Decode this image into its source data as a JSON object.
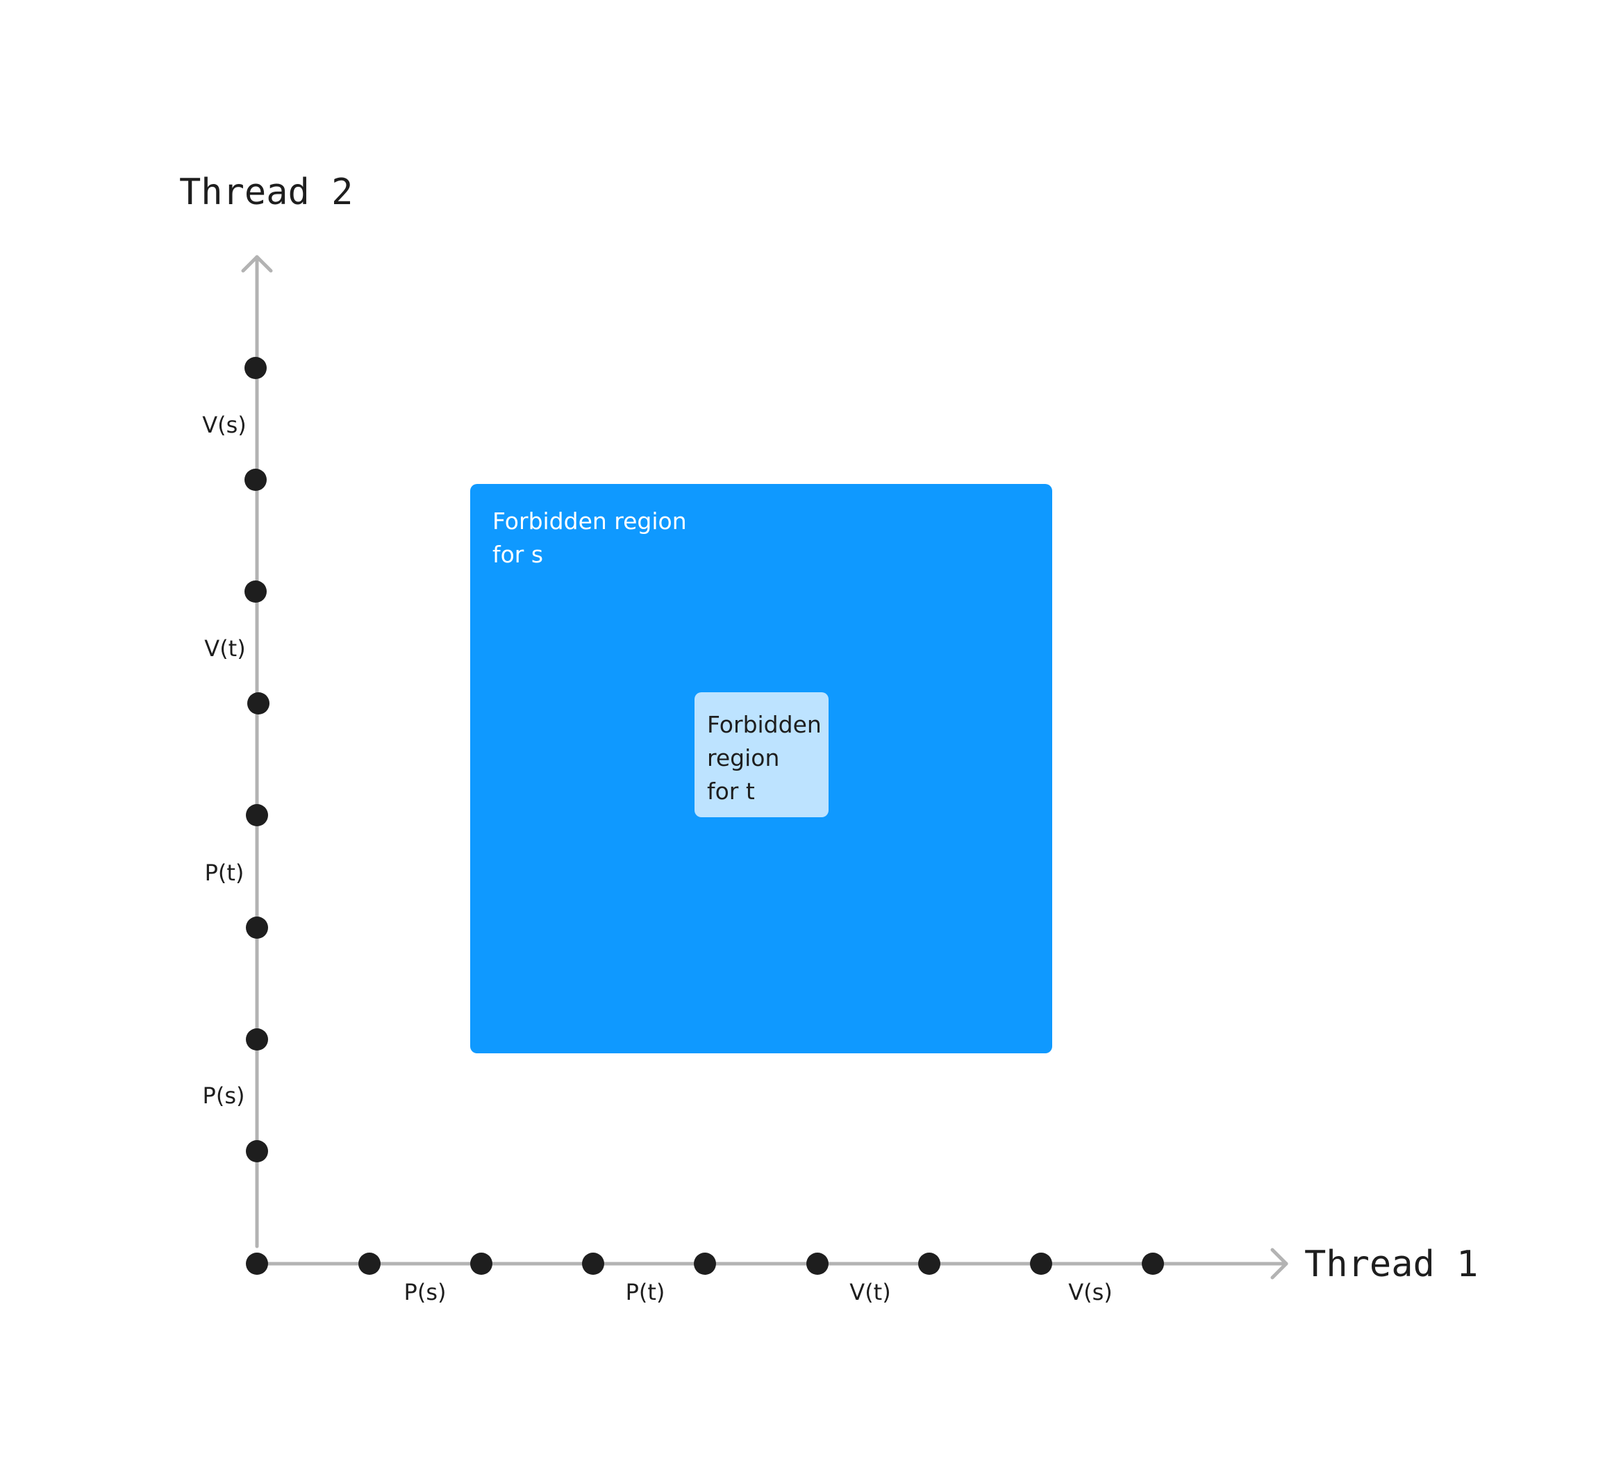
{
  "axes": {
    "x_title": "Thread 1",
    "y_title": "Thread 2"
  },
  "x_segments": [
    "P(s)",
    "P(t)",
    "V(t)",
    "V(s)"
  ],
  "y_segments": [
    "P(s)",
    "P(t)",
    "V(t)",
    "V(s)"
  ],
  "region_s": {
    "lines": [
      "Forbidden region",
      "for s"
    ]
  },
  "region_t": {
    "lines": [
      "Forbidden",
      "region",
      "for t"
    ]
  },
  "colors": {
    "axis": "#b3b3b3",
    "dot": "#1e1e1e",
    "region_s": "#0f99ff",
    "region_t": "#bde3ff"
  }
}
